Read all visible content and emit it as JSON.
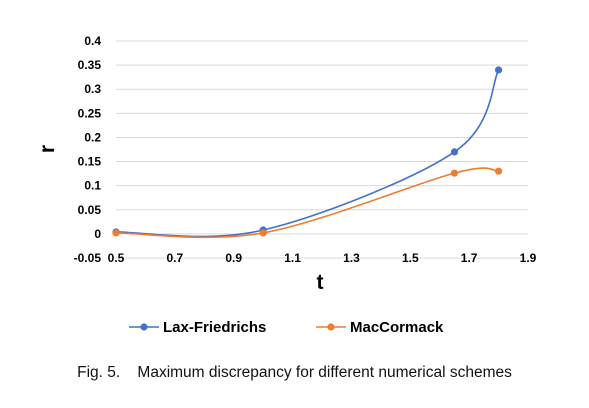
{
  "chart_data": {
    "type": "line",
    "title": "",
    "xlabel": "t",
    "ylabel": "r",
    "xlim": [
      0.5,
      1.9
    ],
    "ylim": [
      -0.05,
      0.4
    ],
    "xticks": [
      "0.5",
      "0.7",
      "0.9",
      "1.1",
      "1.3",
      "1.5",
      "1.7",
      "1.9"
    ],
    "yticks": [
      "-0.05",
      "0",
      "0.05",
      "0.1",
      "0.15",
      "0.2",
      "0.25",
      "0.3",
      "0.35",
      "0.4"
    ],
    "grid": "horizontal",
    "legend_position": "bottom",
    "series": [
      {
        "name": "Lax-Friedrichs",
        "color": "#4472C4",
        "x": [
          0.5,
          1.0,
          1.65,
          1.8
        ],
        "y": [
          0.004,
          0.008,
          0.17,
          0.34
        ]
      },
      {
        "name": "MacCormack",
        "color": "#ED7D31",
        "x": [
          0.5,
          1.0,
          1.65,
          1.8
        ],
        "y": [
          0.002,
          0.002,
          0.126,
          0.13
        ]
      }
    ]
  },
  "caption": "Fig. 5.    Maximum discrepancy for different numerical schemes"
}
